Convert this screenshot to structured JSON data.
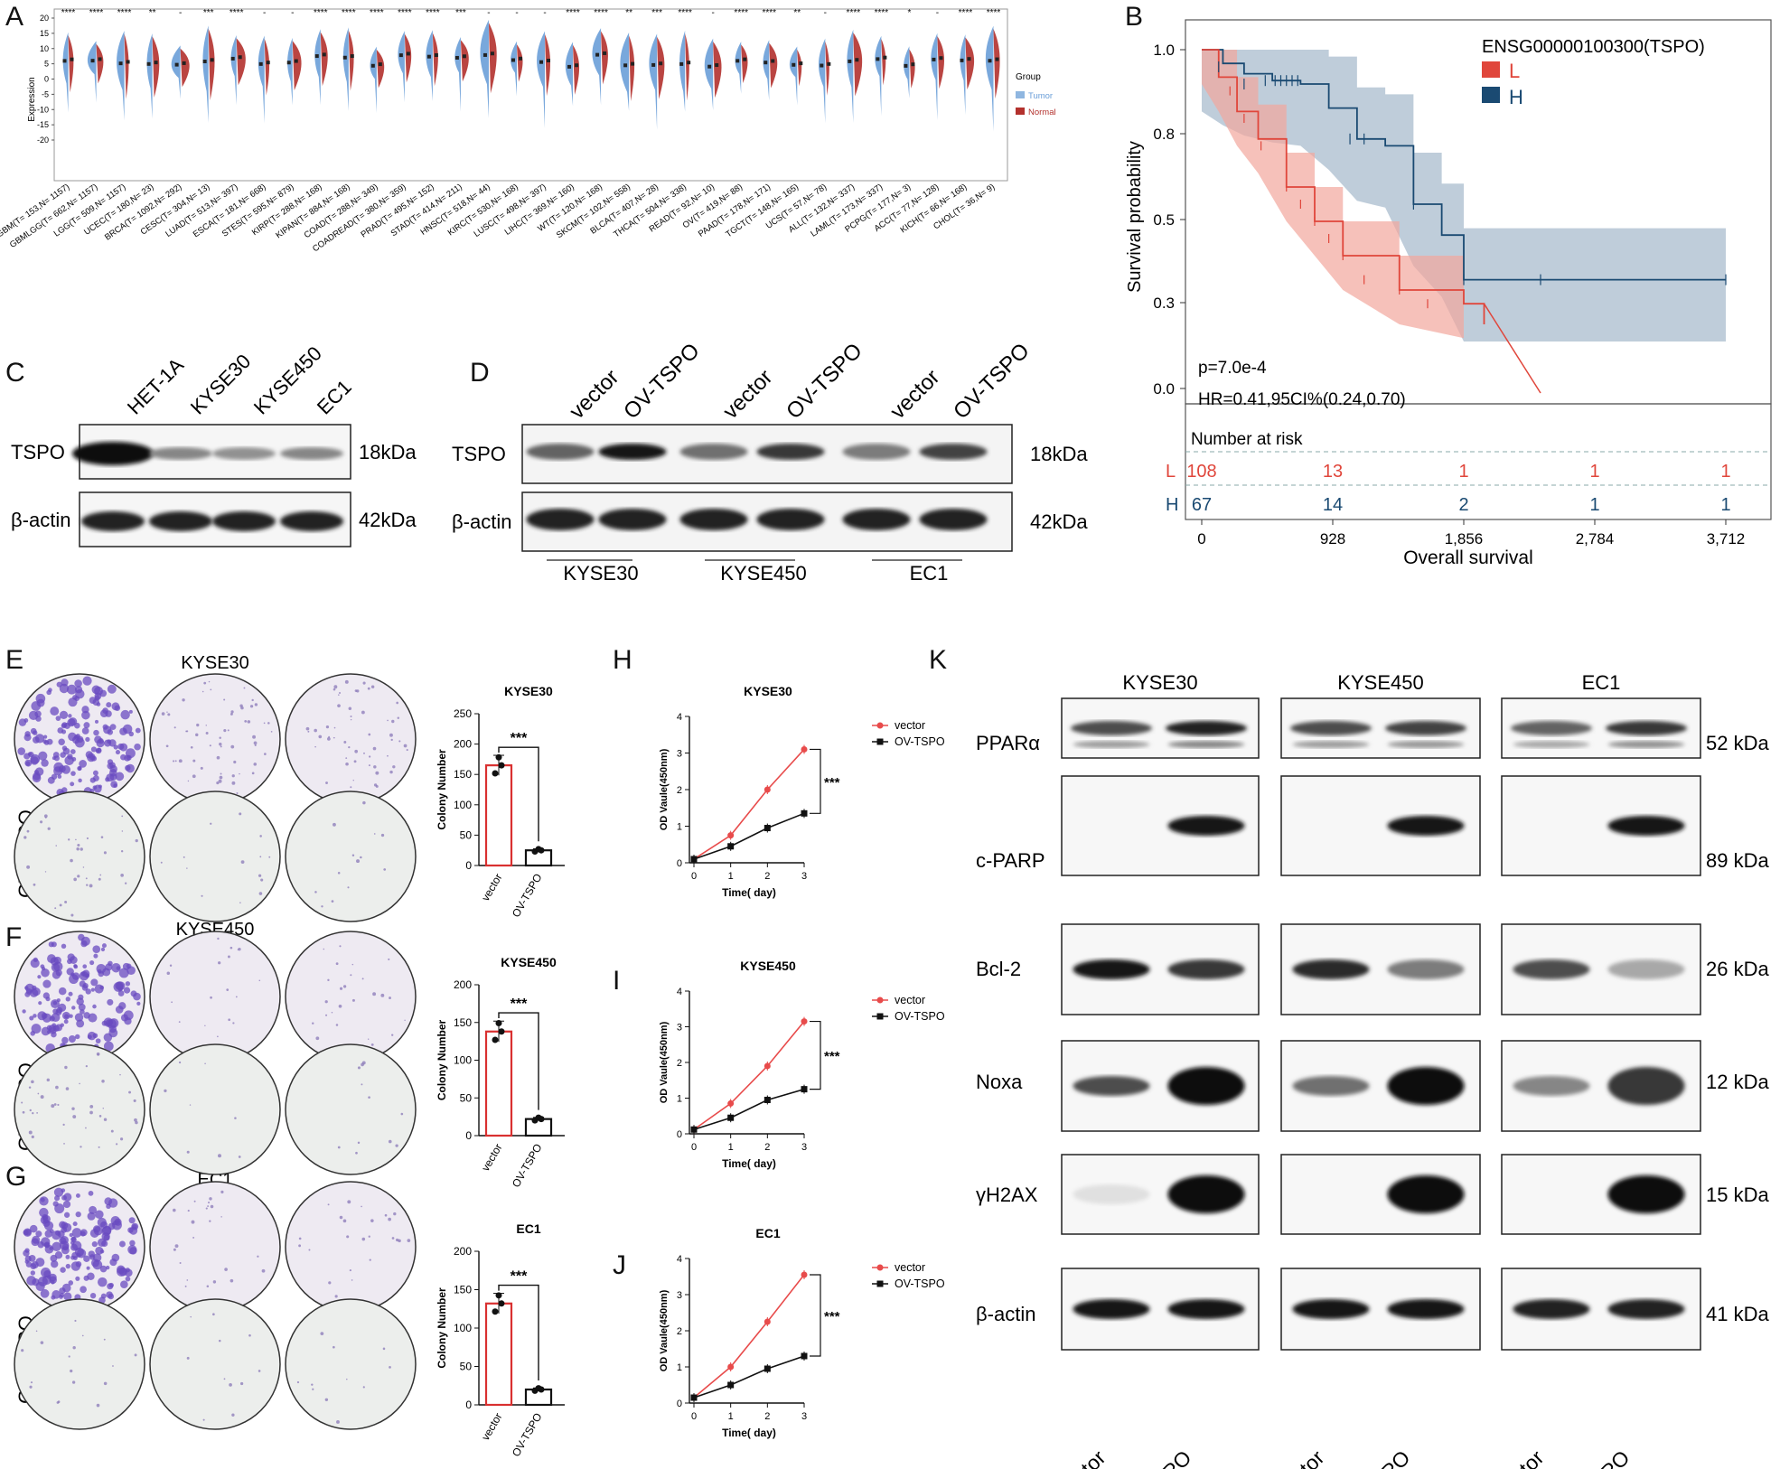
{
  "panels": {
    "A": "A",
    "B": "B",
    "C": "C",
    "D": "D",
    "E": "E",
    "F": "F",
    "G": "G",
    "H": "H",
    "I": "I",
    "J": "J",
    "K": "K"
  },
  "colors": {
    "tumor": "#6a9ed8",
    "normal": "#b3312d",
    "red": "#e0463b",
    "navy": "#1a4a72",
    "vectorLine": "#e84b4b",
    "ovLine": "#111111",
    "bar": "#d93030"
  },
  "chart_data": [
    {
      "id": "A",
      "type": "violin",
      "title": "",
      "ylabel": "Expression",
      "ylim": [
        -20,
        20
      ],
      "yticks": [
        "20",
        "15",
        "10",
        "5",
        "0",
        "-5",
        "-10",
        "-15",
        "-20"
      ],
      "legend": {
        "title": "Group",
        "items": [
          "Tumor",
          "Normal"
        ]
      },
      "categories": [
        "GBM(T= 153,N= 1157)",
        "GBMLGG(T= 662,N= 1157)",
        "LGG(T= 509,N= 1157)",
        "UCEC(T= 180,N= 23)",
        "BRCA(T= 1092,N= 292)",
        "CESC(T= 304,N= 13)",
        "LUAD(T= 513,N= 397)",
        "ESCA(T= 181,N= 668)",
        "STES(T= 595,N= 879)",
        "KIRP(T= 288,N= 168)",
        "KIPAN(T= 884,N= 168)",
        "COAD(T= 288,N= 349)",
        "COADREAD(T= 380,N= 359)",
        "PRAD(T= 495,N= 152)",
        "STAD(T= 414,N= 211)",
        "HNSC(T= 518,N= 44)",
        "KIRC(T= 530,N= 168)",
        "LUSC(T= 498,N= 397)",
        "LIHC(T= 369,N= 160)",
        "WT(T= 120,N= 168)",
        "SKCM(T= 102,N= 558)",
        "BLCA(T= 407,N= 28)",
        "THCA(T= 504,N= 338)",
        "READ(T= 92,N= 10)",
        "OV(T= 419,N= 88)",
        "PAAD(T= 178,N= 171)",
        "TGCT(T= 148,N= 165)",
        "UCS(T= 57,N= 78)",
        "ALL(T= 132,N= 337)",
        "LAML(T= 173,N= 337)",
        "PCPG(T= 177,N= 3)",
        "ACC(T= 77,N= 128)",
        "KICH(T= 66,N= 168)",
        "CHOL(T= 36,N= 9)"
      ],
      "significance": [
        "****",
        "****",
        "****",
        "**",
        "-",
        "***",
        "****",
        "-",
        "-",
        "****",
        "****",
        "****",
        "****",
        "****",
        "***",
        "-",
        "-",
        "-",
        "****",
        "****",
        "**",
        "***",
        "****",
        "-",
        "****",
        "****",
        "**",
        "-",
        "****",
        "****",
        "*",
        "-",
        "****",
        "****"
      ]
    },
    {
      "id": "B",
      "type": "line",
      "title": "ENSG00000100300(TSPO)",
      "xlabel": "Overall survival",
      "ylabel": "Survival probability",
      "series": [
        {
          "name": "L",
          "x": [
            0,
            120,
            250,
            400,
            600,
            800,
            1000,
            1400,
            1856,
            2000,
            2400
          ],
          "y": [
            1.0,
            0.92,
            0.82,
            0.74,
            0.6,
            0.5,
            0.4,
            0.3,
            0.26,
            0.2,
            0.0
          ]
        },
        {
          "name": "H",
          "x": [
            0,
            150,
            300,
            500,
            700,
            900,
            1100,
            1300,
            1500,
            1700,
            1856,
            3712
          ],
          "y": [
            1.0,
            0.96,
            0.93,
            0.91,
            0.9,
            0.83,
            0.74,
            0.72,
            0.55,
            0.46,
            0.33,
            0.33
          ]
        }
      ],
      "xticks": [
        "0",
        "928",
        "1,856",
        "2,784",
        "3,712"
      ],
      "yticks": [
        "1.0",
        "0.8",
        "0.5",
        "0.3",
        "0.0"
      ],
      "stats": {
        "p": "p=7.0e-4",
        "hr": "HR=0.41,95CI%(0.24,0.70)"
      },
      "risk_table": {
        "title": "Number at risk",
        "L": [
          "108",
          "13",
          "1",
          "1",
          "1"
        ],
        "H": [
          "67",
          "14",
          "2",
          "1",
          "1"
        ]
      }
    },
    {
      "id": "E",
      "type": "bar",
      "title": "KYSE30",
      "ylabel": "Colony Number",
      "categories": [
        "vector",
        "OV-TSPO"
      ],
      "values": [
        165,
        25
      ],
      "ylim": [
        0,
        250
      ],
      "yticks": [
        "0",
        "50",
        "100",
        "150",
        "200",
        "250"
      ],
      "sig": "***"
    },
    {
      "id": "F",
      "type": "bar",
      "title": "KYSE450",
      "ylabel": "Colony Number",
      "categories": [
        "vector",
        "OV-TSPO"
      ],
      "values": [
        138,
        22
      ],
      "ylim": [
        0,
        200
      ],
      "yticks": [
        "0",
        "50",
        "100",
        "150",
        "200"
      ],
      "sig": "***"
    },
    {
      "id": "G",
      "type": "bar",
      "title": "EC1",
      "ylabel": "Colony Number",
      "categories": [
        "vector",
        "OV-TSPO"
      ],
      "values": [
        132,
        20
      ],
      "ylim": [
        0,
        200
      ],
      "yticks": [
        "0",
        "50",
        "100",
        "150",
        "200"
      ],
      "sig": "***"
    },
    {
      "id": "H",
      "type": "line",
      "title": "KYSE30",
      "xlabel": "Time( day)",
      "ylabel": "OD Vaule(450nm)",
      "x": [
        0,
        1,
        2,
        3
      ],
      "ylim": [
        0,
        4
      ],
      "yticks": [
        "0",
        "1",
        "2",
        "3",
        "4"
      ],
      "xticks": [
        "0",
        "1",
        "2",
        "3"
      ],
      "series": [
        {
          "name": "vector",
          "values": [
            0.1,
            0.75,
            2.0,
            3.1
          ]
        },
        {
          "name": "OV-TSPO",
          "values": [
            0.1,
            0.45,
            0.95,
            1.35
          ]
        }
      ],
      "sig": "***"
    },
    {
      "id": "I",
      "type": "line",
      "title": "KYSE450",
      "xlabel": "Time( day)",
      "ylabel": "OD Vaule(450nm)",
      "x": [
        0,
        1,
        2,
        3
      ],
      "ylim": [
        0,
        4
      ],
      "yticks": [
        "0",
        "1",
        "2",
        "3",
        "4"
      ],
      "xticks": [
        "0",
        "1",
        "2",
        "3"
      ],
      "series": [
        {
          "name": "vector",
          "values": [
            0.12,
            0.85,
            1.9,
            3.15
          ]
        },
        {
          "name": "OV-TSPO",
          "values": [
            0.12,
            0.45,
            0.95,
            1.25
          ]
        }
      ],
      "sig": "***"
    },
    {
      "id": "J",
      "type": "line",
      "title": "EC1",
      "xlabel": "Time( day)",
      "ylabel": "OD Vaule(450nm)",
      "x": [
        0,
        1,
        2,
        3
      ],
      "ylim": [
        0,
        4
      ],
      "yticks": [
        "0",
        "1",
        "2",
        "3",
        "4"
      ],
      "xticks": [
        "0",
        "1",
        "2",
        "3"
      ],
      "series": [
        {
          "name": "vector",
          "values": [
            0.15,
            1.0,
            2.25,
            3.55
          ]
        },
        {
          "name": "OV-TSPO",
          "values": [
            0.15,
            0.5,
            0.95,
            1.3
          ]
        }
      ],
      "sig": "***"
    }
  ],
  "blotC": {
    "lanes": [
      "HET-1A",
      "KYSE30",
      "KYSE450",
      "EC1"
    ],
    "rows": [
      {
        "label": "TSPO",
        "kda": "18kDa",
        "bands": [
          1.0,
          0.45,
          0.4,
          0.45
        ]
      },
      {
        "label": "β-actin",
        "kda": "42kDa",
        "bands": [
          0.9,
          0.9,
          0.9,
          0.9
        ]
      }
    ]
  },
  "blotD": {
    "lanes": [
      "vector",
      "OV-TSPO",
      "vector",
      "OV-TSPO",
      "vector",
      "OV-TSPO"
    ],
    "groups": [
      "KYSE30",
      "KYSE450",
      "EC1"
    ],
    "rows": [
      {
        "label": "TSPO",
        "kda": "18kDa",
        "bands": [
          0.6,
          0.95,
          0.55,
          0.8,
          0.5,
          0.75
        ]
      },
      {
        "label": "β-actin",
        "kda": "42kDa",
        "bands": [
          0.9,
          0.9,
          0.9,
          0.9,
          0.9,
          0.9
        ]
      }
    ]
  },
  "colony": {
    "title_E": "KYSE30",
    "title_F": "KYSE450",
    "title_G": "EC1",
    "row_vector": "vector",
    "row_ov": "OV-TSPO"
  },
  "blotK": {
    "groups": [
      "KYSE30",
      "KYSE450",
      "EC1"
    ],
    "lanes": [
      "vector",
      "OV-TSPO"
    ],
    "rows": [
      {
        "label": "PPARα",
        "kda": "52 kDa",
        "bands": [
          [
            0.7,
            0.9
          ],
          [
            0.7,
            0.75
          ],
          [
            0.6,
            0.8
          ]
        ]
      },
      {
        "label": "c-PARP",
        "kda": "89 kDa",
        "bands": [
          [
            0,
            0.95
          ],
          [
            0,
            0.95
          ],
          [
            0,
            0.95
          ]
        ]
      },
      {
        "label": "Bcl-2",
        "kda": "26 kDa",
        "bands": [
          [
            0.95,
            0.8
          ],
          [
            0.85,
            0.5
          ],
          [
            0.7,
            0.3
          ]
        ]
      },
      {
        "label": "Noxa",
        "kda": "12 kDa",
        "bands": [
          [
            0.7,
            1.0
          ],
          [
            0.55,
            1.0
          ],
          [
            0.45,
            0.8
          ]
        ]
      },
      {
        "label": "γH2AX",
        "kda": "15 kDa",
        "bands": [
          [
            0.05,
            1.0
          ],
          [
            0,
            1.0
          ],
          [
            0,
            1.0
          ]
        ]
      },
      {
        "label": "β-actin",
        "kda": "41 kDa",
        "bands": [
          [
            0.95,
            0.95
          ],
          [
            0.95,
            0.95
          ],
          [
            0.9,
            0.9
          ]
        ]
      }
    ]
  }
}
